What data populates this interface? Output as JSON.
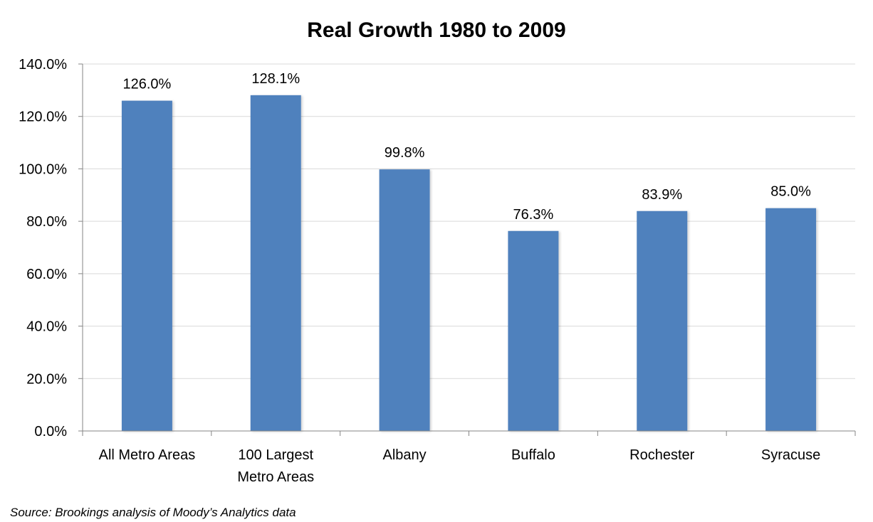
{
  "chart_data": {
    "type": "bar",
    "title": "Real Growth 1980 to 2009",
    "categories": [
      [
        "All Metro Areas"
      ],
      [
        "100 Largest",
        "Metro Areas"
      ],
      [
        "Albany"
      ],
      [
        "Buffalo"
      ],
      [
        "Rochester"
      ],
      [
        "Syracuse"
      ]
    ],
    "values": [
      126.0,
      128.1,
      99.8,
      76.3,
      83.9,
      85.0
    ],
    "data_labels": [
      "126.0%",
      "128.1%",
      "99.8%",
      "76.3%",
      "83.9%",
      "85.0%"
    ],
    "ylim": [
      0,
      140
    ],
    "yticks": [
      0,
      20,
      40,
      60,
      80,
      100,
      120,
      140
    ],
    "ytick_labels": [
      "0.0%",
      "20.0%",
      "40.0%",
      "60.0%",
      "80.0%",
      "100.0%",
      "120.0%",
      "140.0%"
    ],
    "xlabel": "",
    "ylabel": "",
    "grid": true,
    "legend": false,
    "bar_color": "#4f81bd",
    "gridline_color": "#d9d9d9",
    "axis_color": "#868686"
  },
  "source": "Source: Brookings analysis of Moody’s Analytics data"
}
